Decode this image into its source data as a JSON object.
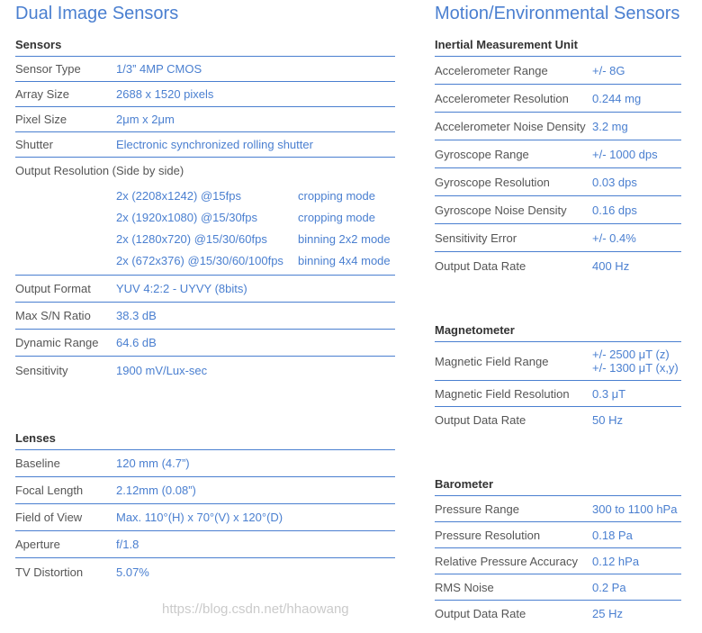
{
  "left": {
    "title": "Dual Image Sensors",
    "sensors": {
      "header": "Sensors",
      "rows_a": [
        {
          "label": "Sensor Type",
          "value": "1/3” 4MP CMOS"
        },
        {
          "label": "Array Size",
          "value": "2688 x 1520 pixels"
        },
        {
          "label": "Pixel Size",
          "value": "2μm x 2μm"
        },
        {
          "label": "Shutter",
          "value": "Electronic synchronized rolling shutter"
        }
      ],
      "output_resolution": {
        "label": "Output Resolution (Side by side)",
        "modes": [
          {
            "res": "2x (2208x1242) @15fps",
            "mode": "cropping mode"
          },
          {
            "res": "2x (1920x1080) @15/30fps",
            "mode": "cropping mode"
          },
          {
            "res": "2x (1280x720) @15/30/60fps",
            "mode": "binning 2x2 mode"
          },
          {
            "res": "2x (672x376) @15/30/60/100fps",
            "mode": "binning 4x4 mode"
          }
        ]
      },
      "rows_b": [
        {
          "label": "Output Format",
          "value": "YUV 4:2:2 - UYVY (8bits)"
        },
        {
          "label": "Max S/N Ratio",
          "value": "38.3 dB"
        },
        {
          "label": "Dynamic Range",
          "value": "64.6 dB"
        },
        {
          "label": "Sensitivity",
          "value": "1900 mV/Lux-sec"
        }
      ]
    },
    "lenses": {
      "header": "Lenses",
      "rows": [
        {
          "label": "Baseline",
          "value": "120 mm (4.7”)"
        },
        {
          "label": "Focal Length",
          "value": "2.12mm  (0.08”)"
        },
        {
          "label": "Field of View",
          "value": "Max. 110°(H) x 70°(V) x 120°(D)"
        },
        {
          "label": "Aperture",
          "value": "f/1.8"
        },
        {
          "label": "TV Distortion",
          "value": "5.07%"
        }
      ]
    }
  },
  "right": {
    "title": "Motion/Environmental Sensors",
    "imu": {
      "header": "Inertial Measurement Unit",
      "rows": [
        {
          "label": "Accelerometer Range",
          "value": "+/- 8G"
        },
        {
          "label": "Accelerometer Resolution",
          "value": "0.244 mg"
        },
        {
          "label": "Accelerometer Noise Density",
          "value": "3.2 mg"
        },
        {
          "label": "Gyroscope Range",
          "value": "+/- 1000 dps"
        },
        {
          "label": "Gyroscope Resolution",
          "value": "0.03 dps"
        },
        {
          "label": "Gyroscope Noise Density",
          "value": "0.16 dps"
        },
        {
          "label": "Sensitivity Error",
          "value": "+/- 0.4%"
        },
        {
          "label": "Output Data Rate",
          "value": "400 Hz"
        }
      ]
    },
    "magnetometer": {
      "header": "Magnetometer",
      "rows": [
        {
          "label": "Magnetic Field Range",
          "value": "+/- 2500 μT (z)\n+/- 1300 μT (x,y)"
        },
        {
          "label": "Magnetic Field Resolution",
          "value": "0.3 μT"
        },
        {
          "label": "Output Data Rate",
          "value": "50 Hz"
        }
      ]
    },
    "barometer": {
      "header": "Barometer",
      "rows": [
        {
          "label": "Pressure Range",
          "value": "300 to 1100 hPa"
        },
        {
          "label": "Pressure Resolution",
          "value": "0.18 Pa"
        },
        {
          "label": "Relative Pressure Accuracy",
          "value": "0.12 hPa"
        },
        {
          "label": "RMS Noise",
          "value": "0.2 Pa"
        },
        {
          "label": "Output Data Rate",
          "value": "25 Hz"
        }
      ]
    }
  },
  "watermark": "https://blog.csdn.net/hhaowang"
}
